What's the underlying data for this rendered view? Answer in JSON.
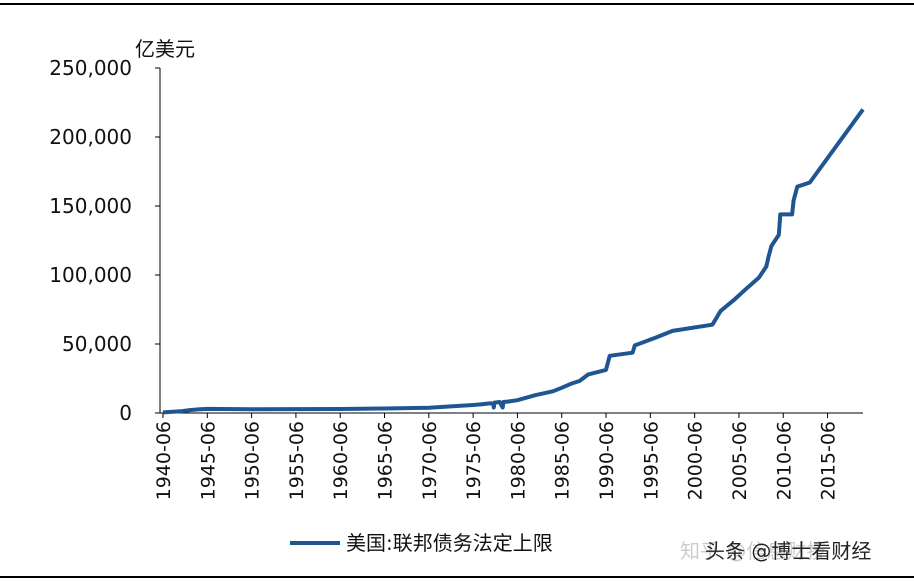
{
  "chart_data": {
    "type": "line",
    "y_unit": "亿美元",
    "x": [
      "1940-06",
      "1942-06",
      "1943-06",
      "1944-06",
      "1945-06",
      "1950-06",
      "1955-06",
      "1960-06",
      "1965-06",
      "1970-06",
      "1975-06",
      "1976-06",
      "1977-06",
      "1977-09",
      "1977-10",
      "1977-11",
      "1978-06",
      "1978-10",
      "1978-11",
      "1979-06",
      "1980-06",
      "1982-06",
      "1984-06",
      "1985-06",
      "1986-06",
      "1987-06",
      "1988-06",
      "1990-06",
      "1990-11",
      "1993-06",
      "1993-09",
      "1996-03",
      "1997-12",
      "2002-06",
      "2003-05",
      "2004-11",
      "2006-03",
      "2007-09",
      "2008-07",
      "2008-10",
      "2009-02",
      "2009-12",
      "2010-02",
      "2011-06",
      "2011-08",
      "2012-01",
      "2013-06",
      "2019-06"
    ],
    "series": [
      {
        "name": "美国:联邦债务法定上限",
        "color": "#1f5591",
        "values": [
          450,
          1250,
          2100,
          2600,
          3000,
          2750,
          2810,
          2930,
          3240,
          3770,
          5770,
          6360,
          7000,
          6820,
          4000,
          7520,
          7980,
          4000,
          7980,
          8300,
          9250,
          12900,
          15730,
          18230,
          21110,
          23200,
          28000,
          31220,
          41450,
          43700,
          49000,
          55000,
          59500,
          64000,
          73840,
          81840,
          89650,
          98150,
          106150,
          113150,
          121040,
          129040,
          143940,
          143940,
          154000,
          164000,
          167000,
          220000
        ]
      }
    ],
    "xlim": [
      "1940-06",
      "2019-06"
    ],
    "xticks": [
      "1940-06",
      "1945-06",
      "1950-06",
      "1955-06",
      "1960-06",
      "1965-06",
      "1970-06",
      "1975-06",
      "1980-06",
      "1985-06",
      "1990-06",
      "1995-06",
      "2000-06",
      "2005-06",
      "2010-06",
      "2015-06"
    ],
    "ylim": [
      0,
      250000
    ],
    "yticks": [
      0,
      {
        "value": 50000,
        "label": "50,000"
      },
      {
        "value": 100000,
        "label": "100,000"
      },
      {
        "value": 150000,
        "label": "150,000"
      },
      {
        "value": 200000,
        "label": "200,000"
      },
      {
        "value": 250000,
        "label": "250,000"
      }
    ],
    "legend": "bottom",
    "watermarks": [
      "知乎 @信息财技",
      "头条 @博士看财经"
    ]
  }
}
